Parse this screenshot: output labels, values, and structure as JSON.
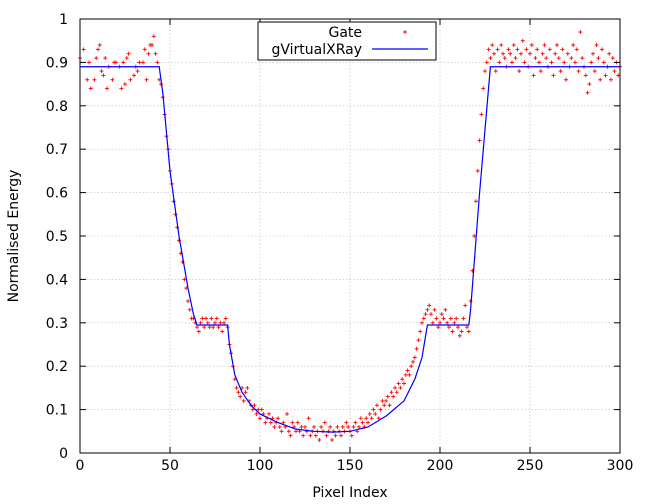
{
  "chart_data": {
    "type": "line",
    "xlabel": "Pixel Index",
    "ylabel": "Normalised Energy",
    "xlim": [
      0,
      300
    ],
    "ylim": [
      0,
      1
    ],
    "x_ticks": [
      "0",
      "50",
      "100",
      "150",
      "200",
      "250",
      "300"
    ],
    "y_ticks": [
      "0",
      "0.1",
      "0.2",
      "0.3",
      "0.4",
      "0.5",
      "0.6",
      "0.7",
      "0.8",
      "0.9",
      "1"
    ],
    "grid": true,
    "legend_position": "top-center",
    "series": [
      {
        "name": "Gate",
        "style": "points",
        "marker": "+",
        "color": "#ff0000",
        "points": [
          [
            0,
            0.91
          ],
          [
            2,
            0.93
          ],
          [
            4,
            0.86
          ],
          [
            5,
            0.9
          ],
          [
            6,
            0.84
          ],
          [
            8,
            0.86
          ],
          [
            9,
            0.91
          ],
          [
            10,
            0.93
          ],
          [
            11,
            0.94
          ],
          [
            12,
            0.88
          ],
          [
            13,
            0.87
          ],
          [
            14,
            0.91
          ],
          [
            15,
            0.84
          ],
          [
            16,
            0.89
          ],
          [
            18,
            0.86
          ],
          [
            19,
            0.9
          ],
          [
            20,
            0.9
          ],
          [
            22,
            0.89
          ],
          [
            23,
            0.84
          ],
          [
            24,
            0.9
          ],
          [
            25,
            0.85
          ],
          [
            26,
            0.91
          ],
          [
            27,
            0.92
          ],
          [
            28,
            0.86
          ],
          [
            30,
            0.87
          ],
          [
            31,
            0.89
          ],
          [
            32,
            0.88
          ],
          [
            33,
            0.9
          ],
          [
            35,
            0.9
          ],
          [
            36,
            0.93
          ],
          [
            37,
            0.86
          ],
          [
            38,
            0.92
          ],
          [
            39,
            0.94
          ],
          [
            40,
            0.94
          ],
          [
            41,
            0.96
          ],
          [
            42,
            0.92
          ],
          [
            43,
            0.9
          ],
          [
            44,
            0.86
          ],
          [
            45,
            0.85
          ],
          [
            46,
            0.82
          ],
          [
            47,
            0.78
          ],
          [
            48,
            0.73
          ],
          [
            49,
            0.7
          ],
          [
            50,
            0.65
          ],
          [
            51,
            0.62
          ],
          [
            52,
            0.58
          ],
          [
            53,
            0.55
          ],
          [
            54,
            0.52
          ],
          [
            55,
            0.49
          ],
          [
            56,
            0.46
          ],
          [
            57,
            0.44
          ],
          [
            58,
            0.4
          ],
          [
            59,
            0.38
          ],
          [
            60,
            0.35
          ],
          [
            61,
            0.33
          ],
          [
            62,
            0.31
          ],
          [
            63,
            0.31
          ],
          [
            64,
            0.3
          ],
          [
            65,
            0.29
          ],
          [
            66,
            0.28
          ],
          [
            67,
            0.3
          ],
          [
            68,
            0.31
          ],
          [
            69,
            0.29
          ],
          [
            70,
            0.31
          ],
          [
            71,
            0.3
          ],
          [
            72,
            0.29
          ],
          [
            73,
            0.31
          ],
          [
            74,
            0.29
          ],
          [
            75,
            0.3
          ],
          [
            76,
            0.31
          ],
          [
            77,
            0.29
          ],
          [
            78,
            0.3
          ],
          [
            79,
            0.28
          ],
          [
            80,
            0.3
          ],
          [
            81,
            0.31
          ],
          [
            82,
            0.29
          ],
          [
            83,
            0.25
          ],
          [
            84,
            0.23
          ],
          [
            85,
            0.2
          ],
          [
            86,
            0.17
          ],
          [
            87,
            0.15
          ],
          [
            88,
            0.14
          ],
          [
            89,
            0.13
          ],
          [
            90,
            0.15
          ],
          [
            91,
            0.12
          ],
          [
            92,
            0.14
          ],
          [
            93,
            0.15
          ],
          [
            94,
            0.12
          ],
          [
            95,
            0.11
          ],
          [
            96,
            0.1
          ],
          [
            97,
            0.11
          ],
          [
            98,
            0.09
          ],
          [
            99,
            0.1
          ],
          [
            100,
            0.08
          ],
          [
            101,
            0.1
          ],
          [
            102,
            0.09
          ],
          [
            103,
            0.07
          ],
          [
            104,
            0.08
          ],
          [
            105,
            0.09
          ],
          [
            106,
            0.07
          ],
          [
            107,
            0.08
          ],
          [
            108,
            0.06
          ],
          [
            109,
            0.07
          ],
          [
            110,
            0.08
          ],
          [
            111,
            0.06
          ],
          [
            112,
            0.05
          ],
          [
            113,
            0.07
          ],
          [
            114,
            0.06
          ],
          [
            115,
            0.09
          ],
          [
            116,
            0.05
          ],
          [
            117,
            0.04
          ],
          [
            118,
            0.07
          ],
          [
            119,
            0.06
          ],
          [
            120,
            0.05
          ],
          [
            121,
            0.07
          ],
          [
            122,
            0.05
          ],
          [
            123,
            0.06
          ],
          [
            124,
            0.04
          ],
          [
            125,
            0.06
          ],
          [
            126,
            0.05
          ],
          [
            127,
            0.08
          ],
          [
            128,
            0.04
          ],
          [
            129,
            0.05
          ],
          [
            130,
            0.06
          ],
          [
            131,
            0.04
          ],
          [
            132,
            0.05
          ],
          [
            133,
            0.03
          ],
          [
            134,
            0.06
          ],
          [
            135,
            0.05
          ],
          [
            136,
            0.07
          ],
          [
            137,
            0.04
          ],
          [
            138,
            0.05
          ],
          [
            139,
            0.06
          ],
          [
            140,
            0.03
          ],
          [
            141,
            0.05
          ],
          [
            142,
            0.04
          ],
          [
            143,
            0.06
          ],
          [
            144,
            0.05
          ],
          [
            145,
            0.04
          ],
          [
            146,
            0.06
          ],
          [
            147,
            0.05
          ],
          [
            148,
            0.07
          ],
          [
            149,
            0.06
          ],
          [
            150,
            0.05
          ],
          [
            151,
            0.04
          ],
          [
            152,
            0.06
          ],
          [
            153,
            0.07
          ],
          [
            154,
            0.05
          ],
          [
            155,
            0.06
          ],
          [
            156,
            0.08
          ],
          [
            157,
            0.07
          ],
          [
            158,
            0.06
          ],
          [
            159,
            0.08
          ],
          [
            160,
            0.07
          ],
          [
            161,
            0.09
          ],
          [
            162,
            0.08
          ],
          [
            163,
            0.1
          ],
          [
            164,
            0.09
          ],
          [
            165,
            0.11
          ],
          [
            166,
            0.08
          ],
          [
            167,
            0.1
          ],
          [
            168,
            0.12
          ],
          [
            169,
            0.11
          ],
          [
            170,
            0.12
          ],
          [
            171,
            0.13
          ],
          [
            172,
            0.11
          ],
          [
            173,
            0.14
          ],
          [
            174,
            0.13
          ],
          [
            175,
            0.15
          ],
          [
            176,
            0.14
          ],
          [
            177,
            0.16
          ],
          [
            178,
            0.15
          ],
          [
            179,
            0.17
          ],
          [
            180,
            0.16
          ],
          [
            181,
            0.18
          ],
          [
            182,
            0.19
          ],
          [
            183,
            0.18
          ],
          [
            184,
            0.2
          ],
          [
            185,
            0.21
          ],
          [
            186,
            0.22
          ],
          [
            187,
            0.24
          ],
          [
            188,
            0.26
          ],
          [
            189,
            0.28
          ],
          [
            190,
            0.3
          ],
          [
            191,
            0.31
          ],
          [
            192,
            0.32
          ],
          [
            193,
            0.33
          ],
          [
            194,
            0.34
          ],
          [
            195,
            0.32
          ],
          [
            196,
            0.3
          ],
          [
            197,
            0.33
          ],
          [
            198,
            0.31
          ],
          [
            199,
            0.29
          ],
          [
            200,
            0.3
          ],
          [
            201,
            0.32
          ],
          [
            202,
            0.31
          ],
          [
            203,
            0.33
          ],
          [
            204,
            0.3
          ],
          [
            205,
            0.29
          ],
          [
            206,
            0.31
          ],
          [
            207,
            0.28
          ],
          [
            208,
            0.3
          ],
          [
            209,
            0.31
          ],
          [
            210,
            0.29
          ],
          [
            211,
            0.27
          ],
          [
            212,
            0.28
          ],
          [
            213,
            0.31
          ],
          [
            214,
            0.34
          ],
          [
            215,
            0.29
          ],
          [
            216,
            0.28
          ],
          [
            217,
            0.35
          ],
          [
            218,
            0.42
          ],
          [
            219,
            0.5
          ],
          [
            220,
            0.58
          ],
          [
            221,
            0.65
          ],
          [
            222,
            0.72
          ],
          [
            223,
            0.78
          ],
          [
            224,
            0.84
          ],
          [
            225,
            0.88
          ],
          [
            226,
            0.9
          ],
          [
            227,
            0.93
          ],
          [
            228,
            0.91
          ],
          [
            229,
            0.94
          ],
          [
            230,
            0.92
          ],
          [
            231,
            0.88
          ],
          [
            232,
            0.93
          ],
          [
            233,
            0.9
          ],
          [
            234,
            0.94
          ],
          [
            235,
            0.92
          ],
          [
            236,
            0.91
          ],
          [
            237,
            0.89
          ],
          [
            238,
            0.93
          ],
          [
            239,
            0.92
          ],
          [
            240,
            0.9
          ],
          [
            241,
            0.94
          ],
          [
            242,
            0.91
          ],
          [
            243,
            0.93
          ],
          [
            244,
            0.88
          ],
          [
            245,
            0.92
          ],
          [
            246,
            0.95
          ],
          [
            247,
            0.9
          ],
          [
            248,
            0.93
          ],
          [
            249,
            0.89
          ],
          [
            250,
            0.92
          ],
          [
            251,
            0.94
          ],
          [
            252,
            0.87
          ],
          [
            253,
            0.91
          ],
          [
            254,
            0.93
          ],
          [
            255,
            0.9
          ],
          [
            256,
            0.88
          ],
          [
            257,
            0.92
          ],
          [
            258,
            0.94
          ],
          [
            259,
            0.91
          ],
          [
            260,
            0.89
          ],
          [
            261,
            0.93
          ],
          [
            262,
            0.9
          ],
          [
            263,
            0.87
          ],
          [
            264,
            0.92
          ],
          [
            265,
            0.94
          ],
          [
            266,
            0.91
          ],
          [
            267,
            0.88
          ],
          [
            268,
            0.93
          ],
          [
            269,
            0.9
          ],
          [
            270,
            0.86
          ],
          [
            271,
            0.92
          ],
          [
            272,
            0.89
          ],
          [
            273,
            0.91
          ],
          [
            274,
            0.94
          ],
          [
            275,
            0.9
          ],
          [
            276,
            0.93
          ],
          [
            277,
            0.88
          ],
          [
            278,
            0.97
          ],
          [
            279,
            0.91
          ],
          [
            280,
            0.89
          ],
          [
            281,
            0.87
          ],
          [
            282,
            0.83
          ],
          [
            283,
            0.85
          ],
          [
            284,
            0.9
          ],
          [
            285,
            0.92
          ],
          [
            286,
            0.88
          ],
          [
            287,
            0.94
          ],
          [
            288,
            0.91
          ],
          [
            289,
            0.86
          ],
          [
            290,
            0.93
          ],
          [
            291,
            0.9
          ],
          [
            292,
            0.87
          ],
          [
            293,
            0.89
          ],
          [
            294,
            0.92
          ],
          [
            295,
            0.86
          ],
          [
            296,
            0.91
          ],
          [
            297,
            0.88
          ],
          [
            298,
            0.9
          ],
          [
            299,
            0.87
          ],
          [
            300,
            0.89
          ]
        ]
      },
      {
        "name": "gVirtualXRay",
        "style": "line",
        "color": "#0000ff",
        "points": [
          [
            0,
            0.89
          ],
          [
            44,
            0.89
          ],
          [
            46,
            0.83
          ],
          [
            50,
            0.65
          ],
          [
            55,
            0.5
          ],
          [
            60,
            0.38
          ],
          [
            63,
            0.32
          ],
          [
            65,
            0.295
          ],
          [
            82,
            0.295
          ],
          [
            83,
            0.25
          ],
          [
            86,
            0.18
          ],
          [
            90,
            0.14
          ],
          [
            95,
            0.11
          ],
          [
            100,
            0.09
          ],
          [
            110,
            0.07
          ],
          [
            120,
            0.055
          ],
          [
            130,
            0.05
          ],
          [
            140,
            0.048
          ],
          [
            150,
            0.05
          ],
          [
            160,
            0.06
          ],
          [
            170,
            0.085
          ],
          [
            180,
            0.12
          ],
          [
            186,
            0.17
          ],
          [
            190,
            0.22
          ],
          [
            193,
            0.295
          ],
          [
            216,
            0.295
          ],
          [
            217,
            0.33
          ],
          [
            222,
            0.6
          ],
          [
            228,
            0.89
          ],
          [
            300,
            0.89
          ]
        ]
      }
    ]
  }
}
